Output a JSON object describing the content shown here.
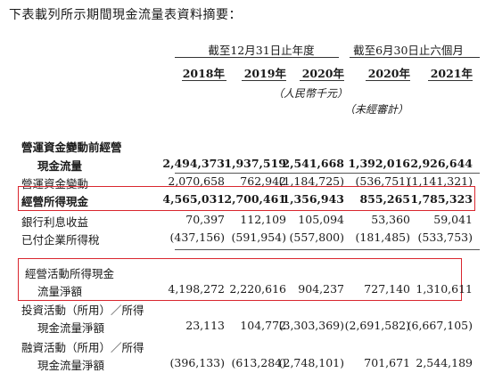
{
  "intro": "下表載列所示期間現金流量表資料摘要：",
  "periods": {
    "year_end": "截至12月31日止年度",
    "six_months": "截至6月30日止六個月"
  },
  "years": [
    "2018年",
    "2019年",
    "2020年",
    "2020年",
    "2021年"
  ],
  "units": {
    "currency": "（人民幣千元）",
    "unaudited": "（未經審計）"
  },
  "rows": {
    "working_capital_header": {
      "label": "營運資金變動前經營"
    },
    "operating_cash_flow": {
      "label": "現金流量",
      "values": [
        "2,494,373",
        "1,937,519",
        "2,541,668",
        "1,392,016",
        "2,926,644"
      ]
    },
    "working_capital_change": {
      "label": "營運資金變動",
      "values": [
        "2,070,658",
        "762,942",
        "(1,184,725)",
        "(536,751)",
        "(1,141,321)"
      ]
    },
    "cash_from_operations": {
      "label": "經營所得現金",
      "values": [
        "4,565,031",
        "2,700,461",
        "1,356,943",
        "855,265",
        "1,785,323"
      ]
    },
    "bank_interest": {
      "label": "銀行利息收益",
      "values": [
        "70,397",
        "112,109",
        "105,094",
        "53,360",
        "59,041"
      ]
    },
    "income_tax_paid": {
      "label": "已付企業所得稅",
      "values": [
        "(437,156)",
        "(591,954)",
        "(557,800)",
        "(181,485)",
        "(533,753)"
      ]
    },
    "net_operating_header": {
      "label": "經營活動所得現金"
    },
    "net_operating": {
      "label": "流量淨額",
      "values": [
        "4,198,272",
        "2,220,616",
        "904,237",
        "727,140",
        "1,310,611"
      ]
    },
    "investing_header": {
      "label": "投資活動（所用）／所得"
    },
    "net_investing": {
      "label": "現金流量淨額",
      "values": [
        "23,113",
        "104,772",
        "(3,303,369)",
        "(2,691,582)",
        "(6,667,105)"
      ]
    },
    "financing_header": {
      "label": "融資活動（所用）／所得"
    },
    "net_financing": {
      "label": "現金流量淨額",
      "values": [
        "(396,133)",
        "(613,284)",
        "(2,748,101)",
        "701,671",
        "2,544,189"
      ]
    }
  },
  "colors": {
    "highlight_box": "#d9262e",
    "text": "#1a1a1a"
  }
}
